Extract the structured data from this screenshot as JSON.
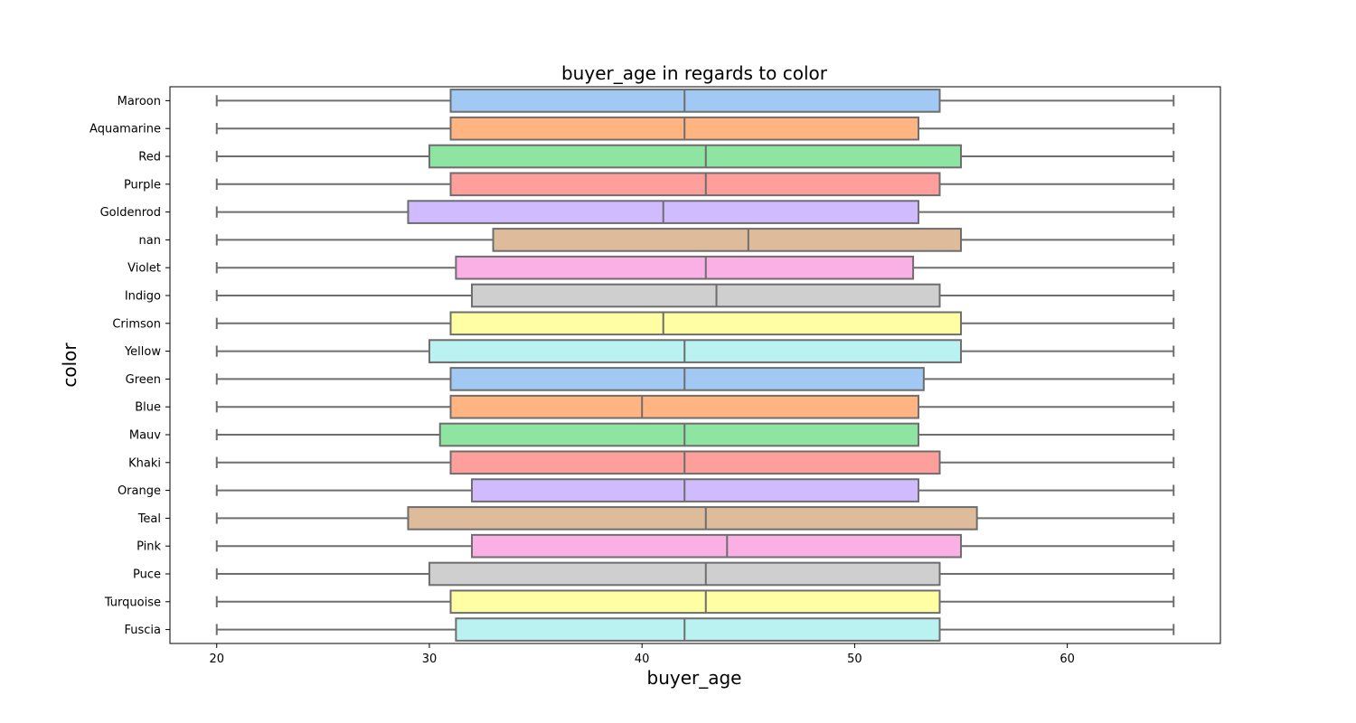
{
  "chart_data": {
    "type": "boxplot",
    "orientation": "horizontal",
    "title": "buyer_age in regards to color",
    "xlabel": "buyer_age",
    "ylabel": "color",
    "xlim": [
      17.8,
      67.2
    ],
    "xticks": [
      20,
      30,
      40,
      50,
      60
    ],
    "grid": false,
    "box_edge_color": "#6e6e6e",
    "palette": [
      "#a1c9f4",
      "#ffb482",
      "#8de5a1",
      "#ff9f9b",
      "#d0bbff",
      "#debb9b",
      "#fab0e4",
      "#cfcfcf",
      "#fffea3",
      "#b9f2f0"
    ],
    "categories": [
      "Maroon",
      "Aquamarine",
      "Red",
      "Purple",
      "Goldenrod",
      "nan",
      "Violet",
      "Indigo",
      "Crimson",
      "Yellow",
      "Green",
      "Blue",
      "Mauv",
      "Khaki",
      "Orange",
      "Teal",
      "Pink",
      "Puce",
      "Turquoise",
      "Fuscia"
    ],
    "boxes": [
      {
        "category": "Maroon",
        "min": 20,
        "q1": 31,
        "median": 42,
        "q3": 54,
        "max": 65
      },
      {
        "category": "Aquamarine",
        "min": 20,
        "q1": 31,
        "median": 42,
        "q3": 53,
        "max": 65
      },
      {
        "category": "Red",
        "min": 20,
        "q1": 30,
        "median": 43,
        "q3": 55,
        "max": 65
      },
      {
        "category": "Purple",
        "min": 20,
        "q1": 31,
        "median": 43,
        "q3": 54,
        "max": 65
      },
      {
        "category": "Goldenrod",
        "min": 20,
        "q1": 29,
        "median": 41,
        "q3": 53,
        "max": 65
      },
      {
        "category": "nan",
        "min": 20,
        "q1": 33,
        "median": 45,
        "q3": 55,
        "max": 65
      },
      {
        "category": "Violet",
        "min": 20,
        "q1": 31.25,
        "median": 43,
        "q3": 52.75,
        "max": 65
      },
      {
        "category": "Indigo",
        "min": 20,
        "q1": 32,
        "median": 43.5,
        "q3": 54,
        "max": 65
      },
      {
        "category": "Crimson",
        "min": 20,
        "q1": 31,
        "median": 41,
        "q3": 55,
        "max": 65
      },
      {
        "category": "Yellow",
        "min": 20,
        "q1": 30,
        "median": 42,
        "q3": 55,
        "max": 65
      },
      {
        "category": "Green",
        "min": 20,
        "q1": 31,
        "median": 42,
        "q3": 53.25,
        "max": 65
      },
      {
        "category": "Blue",
        "min": 20,
        "q1": 31,
        "median": 40,
        "q3": 53,
        "max": 65
      },
      {
        "category": "Mauv",
        "min": 20,
        "q1": 30.5,
        "median": 42,
        "q3": 53,
        "max": 65
      },
      {
        "category": "Khaki",
        "min": 20,
        "q1": 31,
        "median": 42,
        "q3": 54,
        "max": 65
      },
      {
        "category": "Orange",
        "min": 20,
        "q1": 32,
        "median": 42,
        "q3": 53,
        "max": 65
      },
      {
        "category": "Teal",
        "min": 20,
        "q1": 29,
        "median": 43,
        "q3": 55.75,
        "max": 65
      },
      {
        "category": "Pink",
        "min": 20,
        "q1": 32,
        "median": 44,
        "q3": 55,
        "max": 65
      },
      {
        "category": "Puce",
        "min": 20,
        "q1": 30,
        "median": 43,
        "q3": 54,
        "max": 65
      },
      {
        "category": "Turquoise",
        "min": 20,
        "q1": 31,
        "median": 43,
        "q3": 54,
        "max": 65
      },
      {
        "category": "Fuscia",
        "min": 20,
        "q1": 31.25,
        "median": 42,
        "q3": 54,
        "max": 65
      }
    ]
  }
}
